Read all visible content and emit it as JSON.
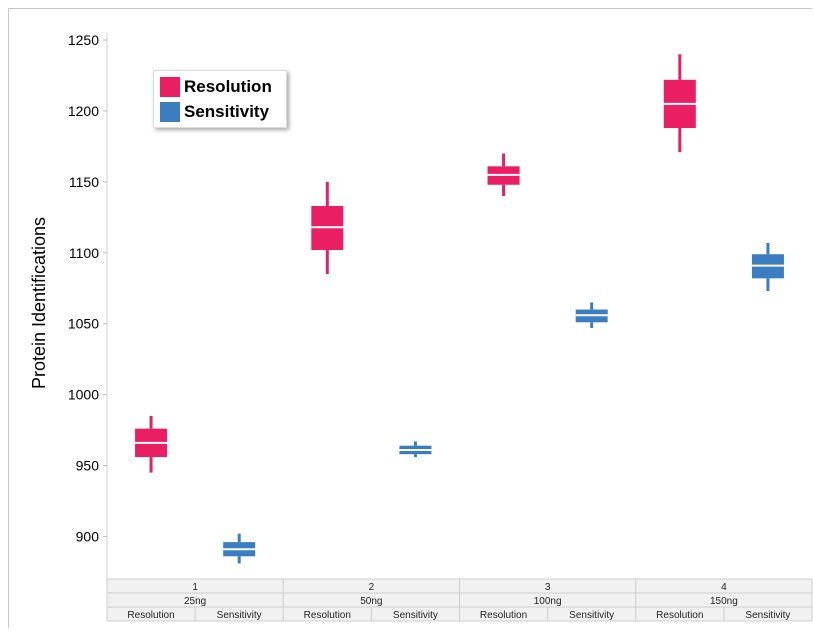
{
  "chart_data": {
    "type": "box",
    "ylabel": "Protein Identifications",
    "ylim": [
      870,
      1255
    ],
    "yticks": [
      900,
      950,
      1000,
      1050,
      1100,
      1150,
      1200,
      1250
    ],
    "grid": false,
    "legend_position": "top-left",
    "colors": {
      "Resolution": "#e91e63",
      "Sensitivity": "#3a7ebf"
    },
    "groups": [
      {
        "index": "1",
        "amount": "25ng"
      },
      {
        "index": "2",
        "amount": "50ng"
      },
      {
        "index": "3",
        "amount": "100ng"
      },
      {
        "index": "4",
        "amount": "150ng"
      }
    ],
    "series": [
      {
        "name": "Resolution",
        "boxes": [
          {
            "min": 945,
            "q1": 956,
            "median": 966,
            "q3": 976,
            "max": 985
          },
          {
            "min": 1085,
            "q1": 1102,
            "median": 1118,
            "q3": 1133,
            "max": 1150
          },
          {
            "min": 1140,
            "q1": 1148,
            "median": 1155,
            "q3": 1161,
            "max": 1170
          },
          {
            "min": 1171,
            "q1": 1188,
            "median": 1205,
            "q3": 1222,
            "max": 1240
          }
        ]
      },
      {
        "name": "Sensitivity",
        "boxes": [
          {
            "min": 881,
            "q1": 886,
            "median": 891,
            "q3": 896,
            "max": 902
          },
          {
            "min": 956,
            "q1": 958,
            "median": 961,
            "q3": 964,
            "max": 967
          },
          {
            "min": 1047,
            "q1": 1051,
            "median": 1056,
            "q3": 1060,
            "max": 1065
          },
          {
            "min": 1073,
            "q1": 1082,
            "median": 1091,
            "q3": 1099,
            "max": 1107
          }
        ]
      }
    ]
  }
}
